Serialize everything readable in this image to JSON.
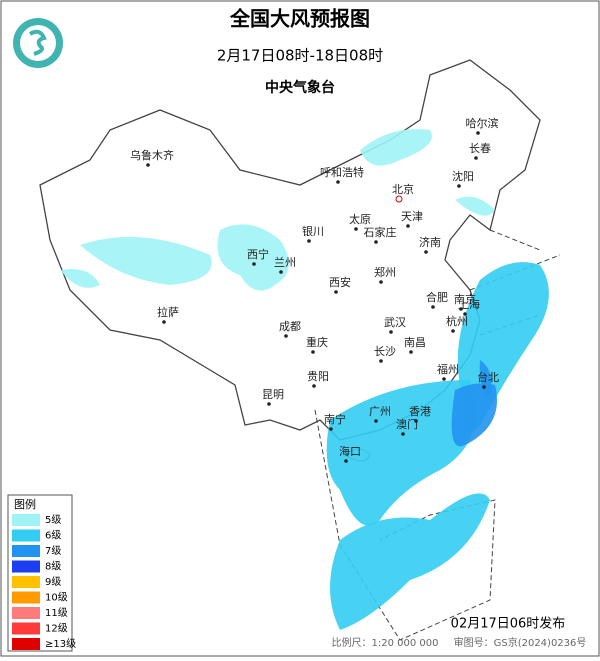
{
  "header": {
    "title": "全国大风预报图",
    "subtitle": "2月17日08时-18日08时",
    "issuer": "中央气象台"
  },
  "cities": [
    "乌鲁木齐",
    "哈尔滨",
    "长春",
    "沈阳",
    "呼和浩特",
    "北京",
    "天津",
    "银川",
    "太原",
    "石家庄",
    "济南",
    "西宁",
    "兰州",
    "郑州",
    "西安",
    "合肥",
    "南京",
    "上海",
    "拉萨",
    "成都",
    "武汉",
    "杭州",
    "重庆",
    "长沙",
    "南昌",
    "福州",
    "台北",
    "贵阳",
    "昆明",
    "广州",
    "香港",
    "澳门",
    "南宁",
    "海口"
  ],
  "legend": {
    "title": "图例",
    "items": [
      {
        "label": "5级",
        "color": "#9ff3f5"
      },
      {
        "label": "6级",
        "color": "#33cdf3"
      },
      {
        "label": "7级",
        "color": "#2193f0"
      },
      {
        "label": "8级",
        "color": "#1a3ef0"
      },
      {
        "label": "9级",
        "color": "#ffc000"
      },
      {
        "label": "10级",
        "color": "#ff9a00"
      },
      {
        "label": "11级",
        "color": "#ff7a7a"
      },
      {
        "label": "12级",
        "color": "#ff3a3a"
      },
      {
        "label": "≥13级",
        "color": "#e00000"
      }
    ]
  },
  "footer": {
    "issued": "02月17日06时发布",
    "scale": "比例尺：1:20 000 000",
    "approval": "审图号：GS京(2024)0236号"
  }
}
